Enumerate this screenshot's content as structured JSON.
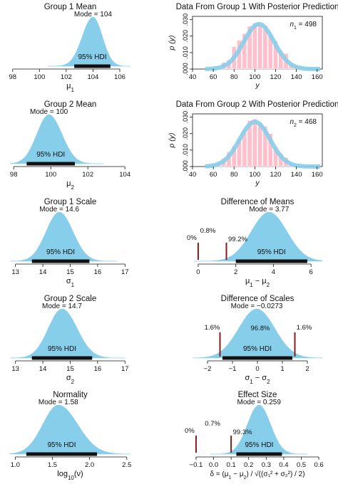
{
  "chart_data": [
    {
      "type": "area",
      "title": "Group 1 Mean",
      "xlabel_main": "μ",
      "xlabel_sub": "1",
      "xlim": [
        97.8,
        106.8
      ],
      "xticks": [
        "98",
        "100",
        "102",
        "104",
        "106"
      ],
      "xtick_values": [
        98,
        100,
        102,
        104,
        106
      ],
      "density": {
        "mode": 104.0,
        "sd_left": 0.8,
        "sd_right": 0.7
      },
      "mode_label": "Mode = 104",
      "hdi": {
        "low": 102.6,
        "high": 105.3,
        "label": "95% HDI"
      }
    },
    {
      "type": "bar",
      "title": "Data From Group 1 With Posterior Prediction",
      "xlabel": "y",
      "ylabel": "p (y)",
      "xlim": [
        40,
        165
      ],
      "ylim": [
        0,
        0.032
      ],
      "xticks": [
        "40",
        "60",
        "80",
        "100",
        "120",
        "140",
        "160"
      ],
      "xtick_values": [
        40,
        60,
        80,
        100,
        120,
        140,
        160
      ],
      "yticks": [
        ".000",
        ".010",
        ".020",
        ".030"
      ],
      "ytick_values": [
        0,
        0.01,
        0.02,
        0.03
      ],
      "n_label": "n",
      "n_sub": "1",
      "n_value": "= 498",
      "bin_width": 5,
      "bins_x": [
        65,
        70,
        75,
        80,
        85,
        90,
        95,
        100,
        105,
        110,
        115,
        120,
        125,
        130,
        135,
        140,
        145
      ],
      "bins_density": [
        0.001,
        0.004,
        0.0055,
        0.0135,
        0.0175,
        0.0215,
        0.026,
        0.028,
        0.027,
        0.0265,
        0.021,
        0.017,
        0.011,
        0.0095,
        0.0035,
        0.002,
        0.0015
      ],
      "prediction": {
        "mean": 104,
        "sd": 14.6
      }
    },
    {
      "type": "area",
      "title": "Group 2 Mean",
      "xlabel_main": "μ",
      "xlabel_sub": "2",
      "xlim": [
        97.8,
        104.3
      ],
      "xticks": [
        "98",
        "100",
        "102",
        "104"
      ],
      "xtick_values": [
        98,
        100,
        102,
        104
      ],
      "density": {
        "mode": 99.9,
        "sd_left": 0.65,
        "sd_right": 0.7
      },
      "mode_label": "Mode = 100",
      "hdi": {
        "low": 98.7,
        "high": 101.3,
        "label": "95% HDI"
      }
    },
    {
      "type": "bar",
      "title": "Data From Group 2 With Posterior Prediction",
      "xlabel": "y",
      "ylabel": "p (y)",
      "xlim": [
        40,
        165
      ],
      "ylim": [
        0,
        0.032
      ],
      "xticks": [
        "40",
        "60",
        "80",
        "100",
        "120",
        "140",
        "160"
      ],
      "xtick_values": [
        40,
        60,
        80,
        100,
        120,
        140,
        160
      ],
      "yticks": [
        ".000",
        ".010",
        ".020",
        ".030"
      ],
      "ytick_values": [
        0,
        0.01,
        0.02,
        0.03
      ],
      "n_label": "n",
      "n_sub": "2",
      "n_value": "= 468",
      "bin_width": 5,
      "bins_x": [
        60,
        65,
        70,
        75,
        80,
        85,
        90,
        95,
        100,
        105,
        110,
        115,
        120,
        125,
        130,
        135
      ],
      "bins_density": [
        0.002,
        0.003,
        0.005,
        0.009,
        0.0125,
        0.017,
        0.022,
        0.028,
        0.029,
        0.027,
        0.0245,
        0.02,
        0.012,
        0.008,
        0.0055,
        0.0025
      ],
      "prediction": {
        "mean": 100,
        "sd": 14.7
      }
    },
    {
      "type": "area",
      "title": "Group 1 Scale",
      "xlabel_main": "σ",
      "xlabel_sub": "1",
      "xlim": [
        12.8,
        17.2
      ],
      "xticks": [
        "13",
        "14",
        "15",
        "16",
        "17"
      ],
      "xtick_values": [
        13,
        14,
        15,
        16,
        17
      ],
      "density": {
        "mode": 14.6,
        "sd_left": 0.48,
        "sd_right": 0.5
      },
      "mode_label": "Mode = 14.6",
      "hdi": {
        "low": 13.6,
        "high": 15.7,
        "label": "95% HDI"
      }
    },
    {
      "type": "area",
      "title": "Difference of Means",
      "xlabel_main": "μ",
      "xlabel_sub": "1",
      "xlabel_rest_main": " − μ",
      "xlabel_rest_sub": "2",
      "xlim": [
        -0.3,
        6.6
      ],
      "xticks": [
        "0",
        "2",
        "4",
        "6"
      ],
      "xtick_values": [
        0,
        2,
        4,
        6
      ],
      "density": {
        "mode": 3.77,
        "sd_left": 0.95,
        "sd_right": 0.95
      },
      "mode_label": "Mode = 3.77",
      "hdi": {
        "low": 2.0,
        "high": 5.8,
        "label": "95% HDI"
      },
      "comparison": {
        "value": 0,
        "label_below": "0%"
      },
      "rope": {
        "low": -1.5,
        "high": 1.5,
        "label_in": "0.8%",
        "label_above": "99.2%"
      }
    },
    {
      "type": "area",
      "title": "Group 2 Scale",
      "xlabel_main": "σ",
      "xlabel_sub": "2",
      "xlim": [
        12.8,
        17.2
      ],
      "xticks": [
        "13",
        "14",
        "15",
        "16",
        "17"
      ],
      "xtick_values": [
        13,
        14,
        15,
        16,
        17
      ],
      "density": {
        "mode": 14.7,
        "sd_left": 0.5,
        "sd_right": 0.55
      },
      "mode_label": "Mode = 14.7",
      "hdi": {
        "low": 13.6,
        "high": 15.8,
        "label": "95% HDI"
      }
    },
    {
      "type": "area",
      "title": "Difference of Scales",
      "xlabel_main": "σ",
      "xlabel_sub": "1",
      "xlabel_rest_main": " − σ",
      "xlabel_rest_sub": "2",
      "xlim": [
        -2.6,
        2.6
      ],
      "xticks": [
        "−2",
        "−1",
        "0",
        "1",
        "2"
      ],
      "xtick_values": [
        -2,
        -1,
        0,
        1,
        2
      ],
      "density": {
        "mode": -0.0273,
        "sd_left": 0.72,
        "sd_right": 0.72
      },
      "mode_label": "Mode = −0.0273",
      "hdi": {
        "low": -1.4,
        "high": 1.4,
        "label": "95% HDI"
      },
      "rope": {
        "low": -1.5,
        "high": 1.5,
        "label_left": "1.6%",
        "label_mid": "96.8%",
        "label_right": "1.6%"
      }
    },
    {
      "type": "area",
      "title": "Normality",
      "xlabel_main": "log",
      "xlabel_sub": "10",
      "xlabel_rest_main": "(ν)",
      "xlim": [
        0.93,
        2.55
      ],
      "xticks": [
        "1.0",
        "1.5",
        "2.0",
        "2.5"
      ],
      "xtick_values": [
        1.0,
        1.5,
        2.0,
        2.5
      ],
      "density": {
        "mode": 1.58,
        "sd_left": 0.21,
        "sd_right": 0.26
      },
      "mode_label": "Mode = 1.58",
      "hdi": {
        "low": 1.15,
        "high": 2.1,
        "label": "95% HDI"
      }
    },
    {
      "type": "area",
      "title": "Effect Size",
      "xlabel_main": "δ = (μ",
      "xlabel_sub": "1",
      "xlabel_rest_main": " − μ",
      "xlabel_rest_sub": "2",
      "xlabel_tail": ") / √((σ₁² + σ₂²) / 2)",
      "xlim": [
        -0.12,
        0.62
      ],
      "xticks": [
        "−0.1",
        "0.0",
        "0.1",
        "0.2",
        "0.3",
        "0.4",
        "0.5",
        "0.6"
      ],
      "xtick_values": [
        -0.1,
        0.0,
        0.1,
        0.2,
        0.3,
        0.4,
        0.5,
        0.6
      ],
      "density": {
        "mode": 0.259,
        "sd_left": 0.066,
        "sd_right": 0.066
      },
      "mode_label": "Mode = 0.259",
      "hdi": {
        "low": 0.13,
        "high": 0.39,
        "label": "95% HDI"
      },
      "comparison": {
        "value": -0.1,
        "label_below": "0%"
      },
      "rope": {
        "low": -0.1,
        "high": 0.1,
        "label_in": "0.7%",
        "label_above": "99.3%"
      }
    }
  ]
}
